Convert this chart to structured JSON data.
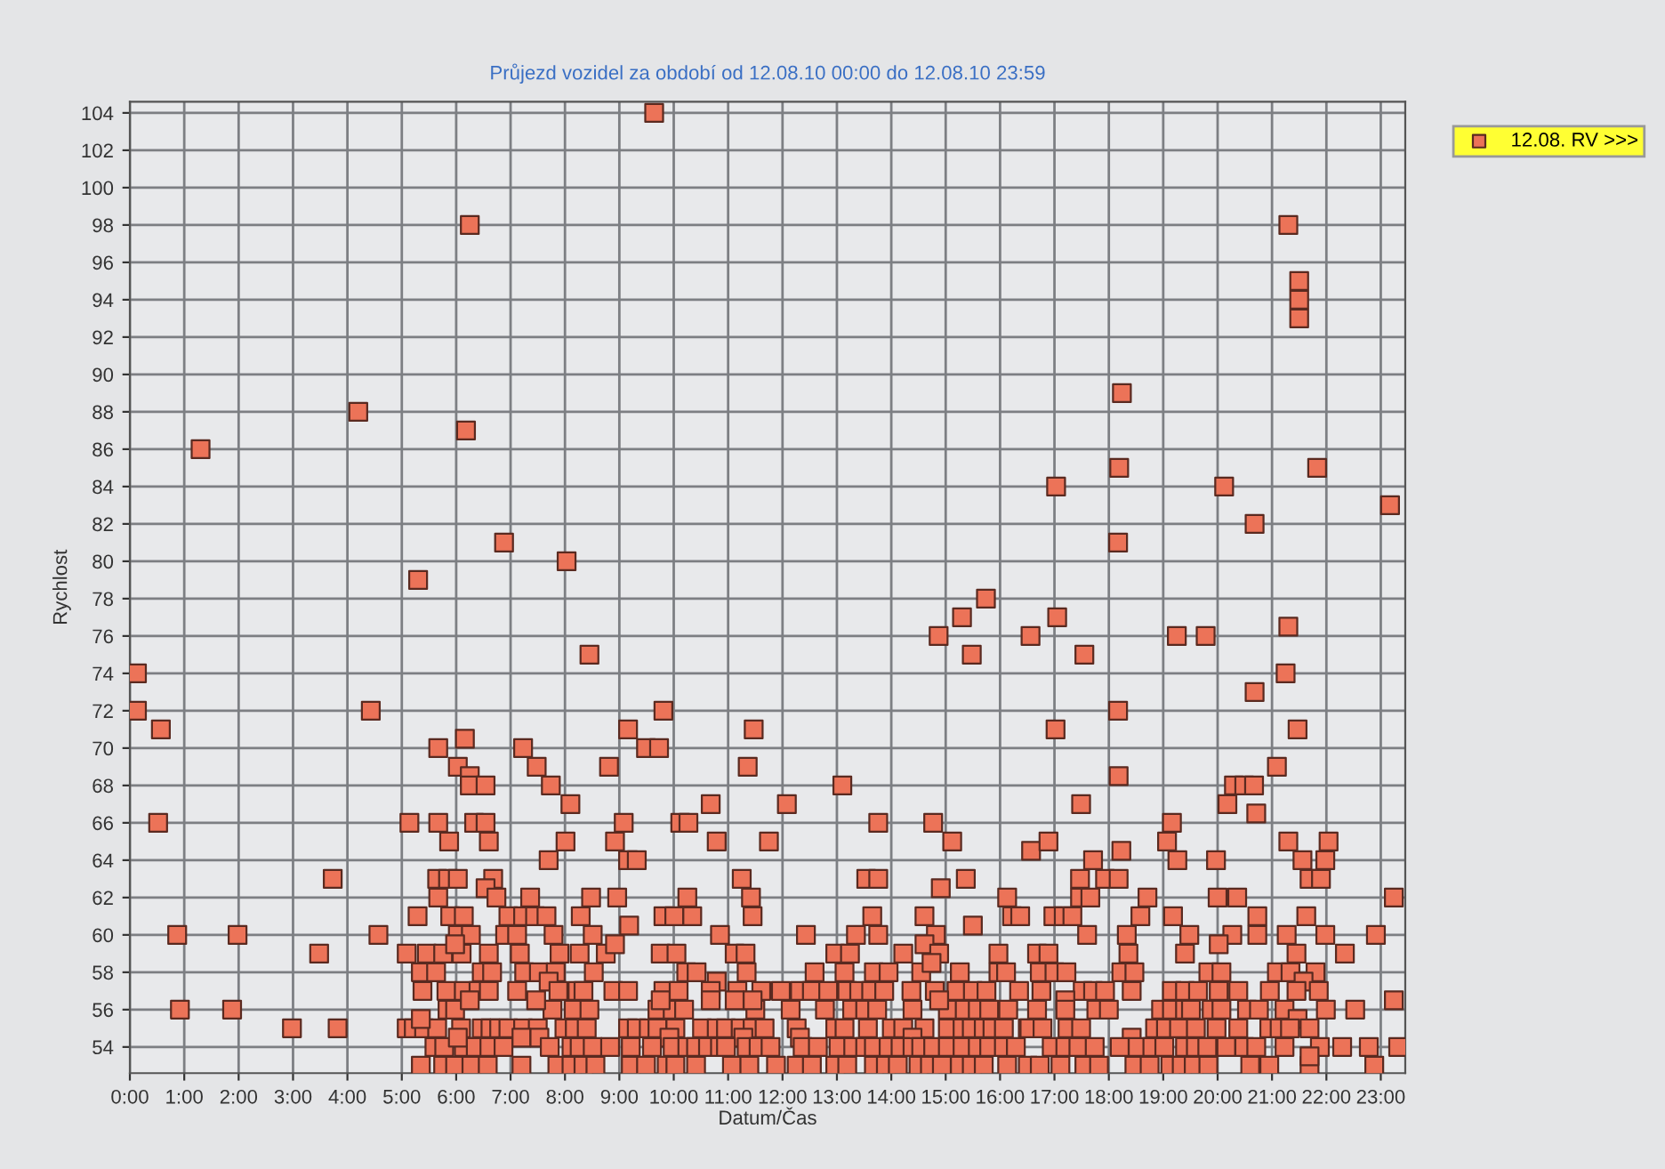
{
  "chart_data": {
    "type": "scatter",
    "title": "Průjezd vozidel za období od 12.08.10 00:00 do 12.08.10 23:59",
    "xlabel": "Datum/Čas",
    "ylabel": "Rychlost",
    "xlim": [
      0,
      23.45
    ],
    "ylim": [
      52.6,
      104.6
    ],
    "xticks": [
      {
        "value": 0,
        "label": "0:00"
      },
      {
        "value": 1,
        "label": "1:00"
      },
      {
        "value": 2,
        "label": "2:00"
      },
      {
        "value": 3,
        "label": "3:00"
      },
      {
        "value": 4,
        "label": "4:00"
      },
      {
        "value": 5,
        "label": "5:00"
      },
      {
        "value": 6,
        "label": "6:00"
      },
      {
        "value": 7,
        "label": "7:00"
      },
      {
        "value": 8,
        "label": "8:00"
      },
      {
        "value": 9,
        "label": "9:00"
      },
      {
        "value": 10,
        "label": "10:00"
      },
      {
        "value": 11,
        "label": "11:00"
      },
      {
        "value": 12,
        "label": "12:00"
      },
      {
        "value": 13,
        "label": "13:00"
      },
      {
        "value": 14,
        "label": "14:00"
      },
      {
        "value": 15,
        "label": "15:00"
      },
      {
        "value": 16,
        "label": "16:00"
      },
      {
        "value": 17,
        "label": "17:00"
      },
      {
        "value": 18,
        "label": "18:00"
      },
      {
        "value": 19,
        "label": "19:00"
      },
      {
        "value": 20,
        "label": "20:00"
      },
      {
        "value": 21,
        "label": "21:00"
      },
      {
        "value": 22,
        "label": "22:00"
      },
      {
        "value": 23,
        "label": "23:00"
      }
    ],
    "yticks": [
      54,
      56,
      58,
      60,
      62,
      64,
      66,
      68,
      70,
      72,
      74,
      76,
      78,
      80,
      82,
      84,
      86,
      88,
      90,
      92,
      94,
      96,
      98,
      100,
      102,
      104
    ],
    "grid": true,
    "legend": "top right",
    "marker": "square",
    "series": [
      {
        "name": "12.08. RV >>>",
        "color": "#ec7358",
        "x": [
          0.13,
          0.13,
          0.57,
          0.52,
          0.87,
          0.92,
          1.3,
          1.98,
          1.88,
          2.98,
          3.48,
          3.73,
          3.82,
          4.2,
          4.43,
          4.57,
          5.3,
          6.18,
          6.25,
          6.88,
          8.03,
          9.64,
          21.3,
          21.5,
          21.5,
          21.5,
          18.24,
          18.19,
          17.03,
          20.12,
          20.68,
          21.83,
          23.17,
          18.17,
          15.74,
          15.3,
          14.87,
          16.56,
          17.05,
          19.25,
          19.78,
          21.3,
          15.48,
          17.55,
          5.67,
          6.16,
          6.03,
          6.25,
          6.25,
          6.54,
          5.14,
          5.67,
          6.33,
          6.54,
          6.6,
          5.87,
          5.65,
          5.85,
          6.03,
          6.68,
          6.54,
          6.74,
          5.67,
          5.29,
          5.89,
          6.14,
          6.03,
          6.27,
          6.9,
          6.96,
          5.09,
          5.46,
          5.76,
          6.1,
          5.98,
          6.6,
          5.35,
          5.63,
          6.47,
          6.66,
          5.38,
          5.82,
          6.14,
          6.41,
          6.6,
          5.84,
          5.98,
          6.25,
          5.09,
          5.22,
          5.41,
          5.65,
          6.09,
          6.47,
          6.63,
          6.79,
          6.96,
          5.6,
          5.78,
          6.14,
          6.36,
          6.61,
          6.87,
          5.35,
          5.76,
          5.98,
          6.28,
          6.58,
          5.35,
          6.03,
          7.23,
          7.48,
          7.74,
          8.1,
          8.01,
          7.7,
          7.36,
          7.23,
          7.45,
          7.66,
          7.12,
          7.79,
          7.17,
          7.9,
          7.25,
          7.52,
          7.83,
          7.12,
          7.7,
          7.88,
          7.77,
          7.47,
          7.23,
          7.5,
          7.99,
          7.2,
          7.53,
          7.72,
          7.2,
          7.86,
          8.45,
          9.81,
          9.16,
          9.49,
          9.73,
          8.81,
          11.47,
          11.36,
          13.1,
          12.08,
          10.68,
          10.12,
          10.27,
          9.08,
          13.76,
          14.77,
          8.92,
          10.79,
          11.75,
          15.12,
          9.16,
          9.32,
          11.25,
          13.54,
          13.76,
          15.37,
          14.91,
          8.48,
          8.96,
          10.25,
          11.42,
          16.13,
          8.29,
          9.81,
          10.01,
          10.34,
          11.45,
          13.65,
          14.61,
          16.22,
          16.37,
          9.18,
          12.43,
          10.85,
          8.51,
          13.35,
          13.76,
          14.82,
          15.5,
          14.61,
          14.88,
          8.27,
          8.75,
          8.92,
          9.76,
          10.05,
          11.12,
          11.32,
          12.97,
          13.24,
          14.22,
          15.97,
          8.53,
          10.23,
          10.42,
          11.34,
          12.59,
          13.14,
          13.68,
          13.95,
          14.55,
          15.26,
          15.97,
          16.11,
          10.79,
          14.74,
          8.23,
          8.34,
          8.89,
          9.16,
          9.81,
          10.09,
          10.68,
          11.17,
          11.61,
          11.97,
          12.32,
          12.54,
          12.84,
          13.19,
          13.41,
          13.63,
          13.87,
          14.37,
          14.8,
          15.2,
          15.5,
          15.75,
          16.35,
          8.16,
          8.45,
          9.7,
          9.98,
          10.19,
          11.5,
          12.15,
          12.78,
          13.28,
          13.52,
          13.74,
          14.39,
          15.04,
          15.35,
          15.59,
          15.8,
          16.15,
          9.76,
          10.68,
          11.12,
          11.45,
          14.88,
          8.18,
          8.4,
          9.16,
          9.32,
          9.54,
          9.7,
          10.03,
          10.52,
          10.79,
          10.96,
          11.23,
          11.45,
          11.67,
          12.26,
          12.97,
          13.14,
          13.57,
          14.01,
          14.22,
          14.61,
          15.04,
          15.31,
          15.48,
          15.7,
          15.86,
          16.07,
          16.51,
          9.92,
          11.28,
          12.32,
          14.39,
          8.12,
          8.27,
          8.51,
          8.83,
          9.21,
          9.6,
          9.98,
          10.25,
          10.41,
          10.63,
          10.85,
          10.96,
          11.34,
          11.56,
          11.78,
          12.37,
          12.65,
          13.03,
          13.3,
          13.52,
          13.68,
          13.95,
          14.17,
          14.39,
          14.55,
          14.77,
          15.04,
          15.31,
          15.59,
          15.8,
          16.07,
          16.29,
          8.12,
          8.34,
          8.56,
          9.21,
          9.49,
          9.87,
          10.03,
          10.41,
          11.07,
          11.39,
          11.88,
          12.26,
          12.54,
          12.97,
          13.19,
          13.68,
          13.9,
          14.12,
          14.5,
          14.71,
          14.93,
          15.26,
          15.48,
          15.7,
          16.13,
          21.25,
          20.68,
          17.02,
          21.47,
          18.17,
          18.18,
          17.49,
          21.09,
          20.3,
          20.49,
          20.67,
          20.18,
          20.71,
          19.16,
          19.07,
          16.57,
          16.89,
          17.71,
          18.23,
          19.26,
          19.97,
          21.3,
          22.04,
          21.56,
          21.98,
          17.47,
          17.93,
          18.18,
          21.69,
          21.9,
          17.47,
          17.66,
          18.71,
          20.0,
          20.36,
          23.24,
          16.98,
          17.17,
          17.33,
          18.58,
          19.18,
          20.73,
          21.63,
          17.6,
          18.33,
          19.48,
          20.27,
          20.73,
          21.27,
          21.98,
          22.91,
          20.02,
          18.36,
          19.4,
          21.45,
          22.34,
          16.68,
          16.89,
          16.73,
          17.0,
          17.22,
          18.23,
          18.47,
          19.83,
          20.07,
          21.09,
          21.34,
          21.8,
          21.58,
          16.76,
          17.52,
          17.71,
          17.93,
          18.42,
          19.16,
          19.4,
          19.64,
          20.02,
          20.38,
          20.96,
          21.45,
          21.86,
          23.24,
          17.2,
          16.68,
          17.2,
          17.77,
          18.0,
          18.96,
          19.16,
          19.4,
          19.51,
          19.89,
          20.07,
          20.54,
          20.76,
          21.23,
          21.47,
          21.99,
          22.53,
          16.54,
          16.78,
          17.24,
          17.49,
          18.85,
          19.05,
          19.29,
          19.6,
          19.98,
          20.38,
          20.95,
          21.14,
          21.33,
          21.69,
          18.42,
          16.95,
          17.2,
          17.44,
          17.74,
          18.2,
          18.53,
          18.8,
          19.02,
          19.4,
          19.6,
          19.81,
          20.16,
          20.49,
          20.71,
          21.23,
          21.88,
          22.29,
          22.78,
          23.32,
          16.51,
          16.73,
          17.11,
          17.55,
          17.82,
          18.47,
          18.75,
          19.13,
          19.34,
          19.56,
          19.83,
          20.6,
          20.95,
          21.69,
          22.88,
          21.69
        ],
        "values": [
          74,
          72,
          71,
          66,
          60,
          56,
          86,
          60,
          56,
          55,
          59,
          63,
          55,
          88,
          72,
          60,
          79,
          87,
          98,
          81,
          80,
          104,
          98,
          95,
          94,
          93,
          89,
          85,
          84,
          84,
          82,
          85,
          83,
          81,
          78,
          77,
          76,
          76,
          77,
          76,
          76,
          76.5,
          75,
          75,
          70,
          70.5,
          69,
          68.5,
          68,
          68,
          66,
          66,
          66,
          66,
          65,
          65,
          63,
          63,
          63,
          63,
          62.5,
          62,
          62,
          61,
          61,
          61,
          60,
          60,
          60,
          61,
          59,
          59,
          59,
          59,
          59.5,
          59,
          58,
          58,
          58,
          58,
          57,
          57,
          57,
          57,
          57,
          56,
          56,
          56.5,
          55,
          55,
          55,
          55,
          55,
          55,
          55,
          55,
          55,
          54,
          54,
          54,
          54,
          54,
          54,
          53,
          53,
          53,
          53,
          53,
          55.5,
          54.5,
          70,
          69,
          68,
          67,
          65,
          64,
          62,
          61,
          61,
          61,
          60,
          60,
          59,
          59,
          58,
          58,
          58,
          57,
          57.5,
          57,
          56,
          56.5,
          55,
          55,
          55,
          54.5,
          54.5,
          54,
          53,
          53,
          75,
          72,
          71,
          70,
          70,
          69,
          71,
          69,
          68,
          67,
          67,
          66,
          66,
          66,
          66,
          66,
          65,
          65,
          65,
          65,
          64,
          64,
          63,
          63,
          63,
          63,
          62.5,
          62,
          62,
          62,
          62,
          62,
          61,
          61,
          61,
          61,
          61,
          61,
          61,
          61,
          61,
          60.5,
          60,
          60,
          60,
          60,
          60,
          60,
          60.5,
          59.5,
          59,
          59,
          59,
          59.5,
          59,
          59,
          59,
          59,
          59,
          59,
          59,
          59,
          58,
          58,
          58,
          58,
          58,
          58,
          58,
          58,
          58,
          58,
          58,
          58,
          57.5,
          58.5,
          57,
          57,
          57,
          57,
          57,
          57,
          57,
          57,
          57,
          57,
          57,
          57,
          57,
          57,
          57,
          57,
          57,
          57,
          57,
          57,
          57,
          57,
          57,
          56,
          56,
          56,
          56,
          56,
          56,
          56,
          56,
          56,
          56,
          56,
          56,
          56,
          56,
          56,
          56,
          56,
          56.5,
          56.5,
          56.5,
          56.5,
          56.5,
          55,
          55,
          55,
          55,
          55,
          55,
          55,
          55,
          55,
          55,
          55,
          55,
          55,
          55,
          55,
          55,
          55,
          55,
          55,
          55,
          55,
          55,
          55,
          55,
          55,
          55,
          55,
          54.5,
          54.5,
          54.5,
          54.5,
          54,
          54,
          54,
          54,
          54,
          54,
          54,
          54,
          54,
          54,
          54,
          54,
          54,
          54,
          54,
          54,
          54,
          54,
          54,
          54,
          54,
          54,
          54,
          54,
          54,
          54,
          54,
          54,
          54,
          54,
          54,
          54,
          53,
          53,
          53,
          53,
          53,
          53,
          53,
          53,
          53,
          53,
          53,
          53,
          53,
          53,
          53,
          53,
          53,
          53,
          53,
          53,
          53,
          53,
          53,
          53,
          53,
          74,
          73,
          71,
          71,
          72,
          68.5,
          67,
          69,
          68,
          68,
          68,
          67,
          66.5,
          66,
          65,
          64.5,
          65,
          64,
          64.5,
          64,
          64,
          65,
          65,
          64,
          64,
          63,
          63,
          63,
          63,
          63,
          62,
          62,
          62,
          62,
          62,
          62,
          61,
          61,
          61,
          61,
          61,
          61,
          61,
          60,
          60,
          60,
          60,
          60,
          60,
          60,
          60,
          59.5,
          59,
          59,
          59,
          59,
          59,
          59,
          58,
          58,
          58,
          58,
          58,
          58,
          58,
          58,
          58,
          58,
          57.5,
          57,
          57,
          57,
          57,
          57,
          57,
          57,
          57,
          57,
          57,
          57,
          57,
          57,
          56.5,
          56.5,
          56,
          56,
          56,
          56,
          56,
          56,
          56,
          56,
          56,
          56,
          56,
          56,
          56,
          55.5,
          56,
          56,
          55,
          55,
          55,
          55,
          55,
          55,
          55,
          55,
          55,
          55,
          55,
          55,
          55,
          55,
          54.5,
          54,
          54,
          54,
          54,
          54,
          54,
          54,
          54,
          54,
          54,
          54,
          54,
          54,
          54,
          54,
          54,
          54,
          54,
          54,
          53,
          53,
          53,
          53,
          53,
          53,
          53,
          53,
          53,
          53,
          53,
          53,
          53,
          53,
          53,
          53.5
        ]
      }
    ]
  }
}
